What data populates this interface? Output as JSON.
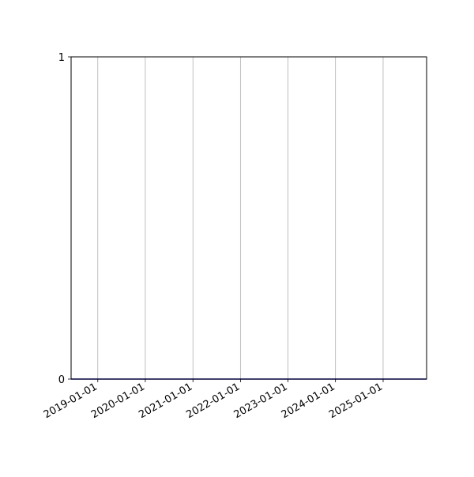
{
  "chart_data": {
    "type": "line",
    "title": "",
    "xlabel": "",
    "ylabel": "",
    "x_axis_type": "date",
    "xlim": [
      "2018-06-10",
      "2025-12-01"
    ],
    "ylim": [
      0,
      1
    ],
    "x_ticks": [
      "2019-01-01",
      "2020-01-01",
      "2021-01-01",
      "2022-01-01",
      "2023-01-01",
      "2024-01-01",
      "2025-01-01"
    ],
    "y_ticks": [
      "0",
      "1"
    ],
    "grid": "vertical (x only)",
    "series": [
      {
        "color": "#0000aa",
        "x": [
          "2018-06-10",
          "2025-12-01"
        ],
        "y": [
          0,
          0
        ]
      }
    ]
  }
}
